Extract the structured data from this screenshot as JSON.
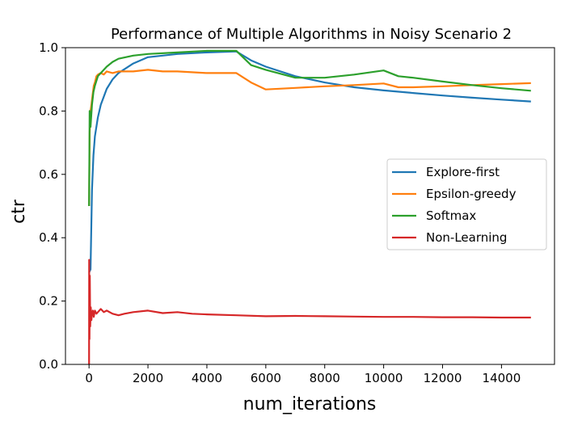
{
  "chart_data": {
    "type": "line",
    "title": "Performance of Multiple Algorithms in Noisy Scenario 2",
    "xlabel": "num_iterations",
    "ylabel": "ctr",
    "xlim": [
      -800,
      15800
    ],
    "ylim": [
      0.0,
      1.0
    ],
    "xticks": [
      0,
      2000,
      4000,
      6000,
      8000,
      10000,
      12000,
      14000
    ],
    "yticks": [
      0.0,
      0.2,
      0.4,
      0.6,
      0.8,
      1.0
    ],
    "xtick_labels": [
      "0",
      "2000",
      "4000",
      "6000",
      "8000",
      "10000",
      "12000",
      "14000"
    ],
    "ytick_labels": [
      "0.0",
      "0.2",
      "0.4",
      "0.6",
      "0.8",
      "1.0"
    ],
    "grid": false,
    "legend_position": "center-right",
    "series": [
      {
        "name": "Explore-first",
        "color": "#1f77b4",
        "x": [
          1,
          50,
          100,
          150,
          200,
          300,
          400,
          600,
          800,
          1000,
          1500,
          2000,
          3000,
          4000,
          5000,
          5500,
          6000,
          7000,
          8000,
          9000,
          10000,
          11000,
          12000,
          13000,
          14000,
          15000
        ],
        "y": [
          0.29,
          0.3,
          0.55,
          0.66,
          0.72,
          0.78,
          0.82,
          0.87,
          0.9,
          0.92,
          0.95,
          0.97,
          0.98,
          0.985,
          0.988,
          0.96,
          0.94,
          0.91,
          0.89,
          0.875,
          0.865,
          0.857,
          0.849,
          0.842,
          0.836,
          0.83
        ]
      },
      {
        "name": "Epsilon-greedy",
        "color": "#ff7f0e",
        "x": [
          1,
          20,
          50,
          80,
          120,
          160,
          200,
          250,
          300,
          400,
          500,
          600,
          800,
          1000,
          1500,
          2000,
          2500,
          3000,
          4000,
          5000,
          5500,
          6000,
          7000,
          8000,
          9000,
          10000,
          10500,
          11000,
          12000,
          13000,
          14000,
          15000
        ],
        "y": [
          0.5,
          0.73,
          0.8,
          0.82,
          0.85,
          0.88,
          0.89,
          0.91,
          0.915,
          0.92,
          0.915,
          0.925,
          0.92,
          0.925,
          0.925,
          0.93,
          0.925,
          0.925,
          0.92,
          0.92,
          0.89,
          0.868,
          0.873,
          0.878,
          0.882,
          0.887,
          0.875,
          0.875,
          0.878,
          0.882,
          0.885,
          0.888
        ]
      },
      {
        "name": "Softmax",
        "color": "#2ca02c",
        "x": [
          1,
          20,
          50,
          100,
          150,
          200,
          300,
          400,
          500,
          600,
          800,
          1000,
          1500,
          2000,
          3000,
          4000,
          5000,
          5500,
          6000,
          7000,
          8000,
          9000,
          10000,
          10500,
          11000,
          12000,
          13000,
          14000,
          15000
        ],
        "y": [
          0.5,
          0.8,
          0.75,
          0.82,
          0.86,
          0.88,
          0.91,
          0.92,
          0.93,
          0.94,
          0.955,
          0.965,
          0.975,
          0.98,
          0.985,
          0.99,
          0.99,
          0.945,
          0.93,
          0.905,
          0.905,
          0.915,
          0.928,
          0.91,
          0.905,
          0.893,
          0.882,
          0.872,
          0.864
        ]
      },
      {
        "name": "Non-Learning",
        "color": "#d62728",
        "x": [
          0,
          5,
          15,
          25,
          40,
          60,
          80,
          100,
          130,
          160,
          200,
          250,
          300,
          400,
          500,
          600,
          800,
          1000,
          1200,
          1500,
          2000,
          2500,
          3000,
          3500,
          4000,
          5000,
          6000,
          7000,
          8000,
          9000,
          10000,
          11000,
          12000,
          13000,
          14000,
          15000
        ],
        "y": [
          0.0,
          0.33,
          0.08,
          0.28,
          0.12,
          0.18,
          0.14,
          0.16,
          0.17,
          0.15,
          0.17,
          0.16,
          0.165,
          0.175,
          0.165,
          0.17,
          0.16,
          0.155,
          0.16,
          0.165,
          0.17,
          0.162,
          0.165,
          0.16,
          0.158,
          0.155,
          0.152,
          0.153,
          0.152,
          0.151,
          0.15,
          0.15,
          0.149,
          0.149,
          0.148,
          0.148
        ]
      }
    ]
  }
}
